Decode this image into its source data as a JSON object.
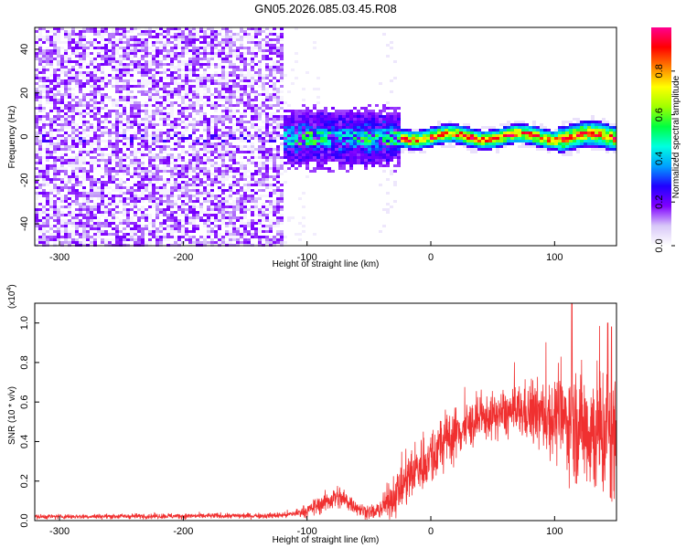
{
  "title": "GN05.2026.085.03.45.R08",
  "chart_data": [
    {
      "type": "heatmap",
      "xlabel": "Height of straight line (km)",
      "ylabel": "Frequency (Hz)",
      "xlim": [
        -320,
        150
      ],
      "ylim": [
        -50,
        50
      ],
      "x_ticks": [
        -300,
        -200,
        -100,
        0,
        100
      ],
      "y_ticks": [
        -40,
        -20,
        0,
        20,
        40
      ],
      "colorbar": {
        "label": "Normalized spectral amplitude",
        "range": [
          0.0,
          1.0
        ],
        "ticks": [
          "0.0",
          "0.2",
          "0.4",
          "0.6",
          "0.8"
        ],
        "tick_values": [
          0.0,
          0.2,
          0.4,
          0.6,
          0.8
        ],
        "colors": [
          "#ffffff",
          "#d8c8f8",
          "#8000ff",
          "#2000ff",
          "#00a0ff",
          "#00ffe0",
          "#00ff40",
          "#a0ff00",
          "#ffff00",
          "#ff8000",
          "#ff0000",
          "#ff0090"
        ]
      },
      "regions": [
        {
          "x_range": [
            -320,
            -120
          ],
          "description_level": 0.12,
          "freq_spread": 50
        },
        {
          "x_range": [
            -120,
            -25
          ],
          "description_level": 0.3,
          "freq_spread": 12
        },
        {
          "x_range": [
            -25,
            150
          ],
          "description_level": 0.7,
          "freq_spread": 3
        }
      ]
    },
    {
      "type": "line",
      "xlabel": "Height of straight line (km)",
      "ylabel": "SNR (10 * v/v)",
      "y_multiplier": "(x10",
      "y_multiplier_exp": "4",
      "xlim": [
        -320,
        150
      ],
      "ylim": [
        0,
        1.1
      ],
      "x_ticks": [
        -300,
        -200,
        -100,
        0,
        100
      ],
      "y_ticks": [
        "0.0",
        "0.2",
        "0.4",
        "0.6",
        "0.8",
        "1.0"
      ],
      "y_tick_values": [
        0.0,
        0.2,
        0.4,
        0.6,
        0.8,
        1.0
      ],
      "color": "#f03030",
      "envelope": {
        "x": [
          -320,
          -130,
          -115,
          -100,
          -90,
          -80,
          -75,
          -65,
          -55,
          -45,
          -35,
          -25,
          -15,
          -5,
          5,
          15,
          30,
          45,
          60,
          75,
          90,
          105,
          115,
          125,
          135,
          150
        ],
        "mean": [
          0.02,
          0.025,
          0.03,
          0.05,
          0.08,
          0.11,
          0.12,
          0.09,
          0.05,
          0.04,
          0.09,
          0.16,
          0.24,
          0.3,
          0.36,
          0.42,
          0.48,
          0.52,
          0.54,
          0.55,
          0.53,
          0.51,
          0.49,
          0.47,
          0.45,
          0.42
        ],
        "spread": [
          0.01,
          0.012,
          0.015,
          0.025,
          0.04,
          0.05,
          0.05,
          0.04,
          0.03,
          0.03,
          0.07,
          0.1,
          0.12,
          0.12,
          0.12,
          0.12,
          0.1,
          0.09,
          0.1,
          0.12,
          0.15,
          0.18,
          0.22,
          0.26,
          0.3,
          0.3
        ]
      },
      "peaks": [
        {
          "x": 114,
          "y": 1.1
        },
        {
          "x": 143,
          "y": 1.0
        },
        {
          "x": 146,
          "y": 0.98
        }
      ]
    }
  ]
}
